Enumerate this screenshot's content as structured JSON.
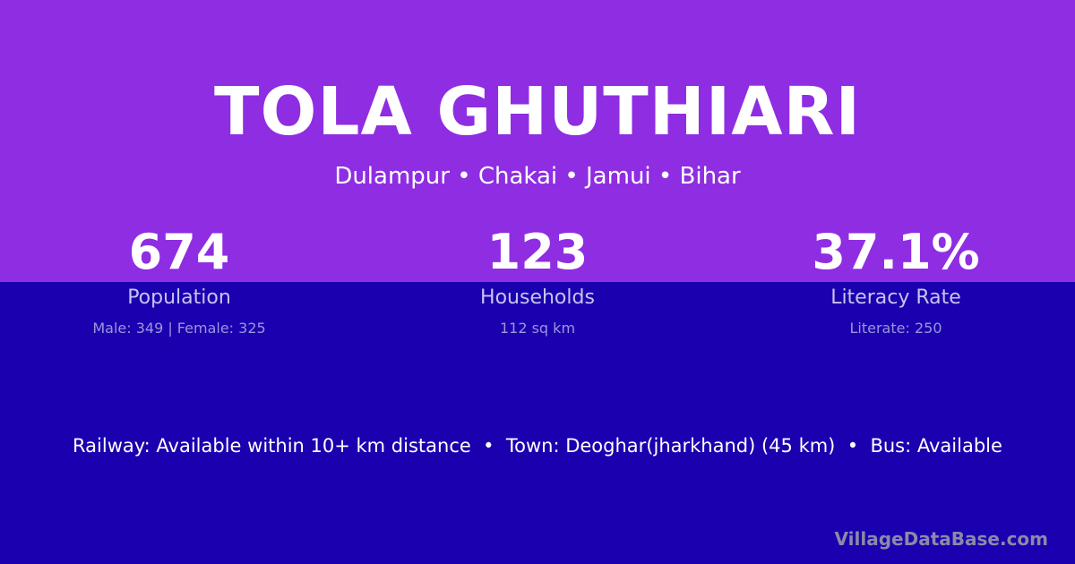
{
  "title": "TOLA GHUTHIARI",
  "location": "Dulampur • Chakai • Jamui • Bihar",
  "stats": [
    {
      "value": "674",
      "label": "Population",
      "detail": "Male: 349 | Female: 325"
    },
    {
      "value": "123",
      "label": "Households",
      "detail": "112 sq km"
    },
    {
      "value": "37.1%",
      "label": "Literacy Rate",
      "detail": "Literate: 250"
    }
  ],
  "info": "Railway: Available within 10+ km distance  •  Town: Deoghar(jharkhand) (45 km)  •  Bus: Available",
  "brand": "VillageDataBase.com",
  "colors": {
    "top": "#8e2de2",
    "bottom": "#1a00ae"
  }
}
